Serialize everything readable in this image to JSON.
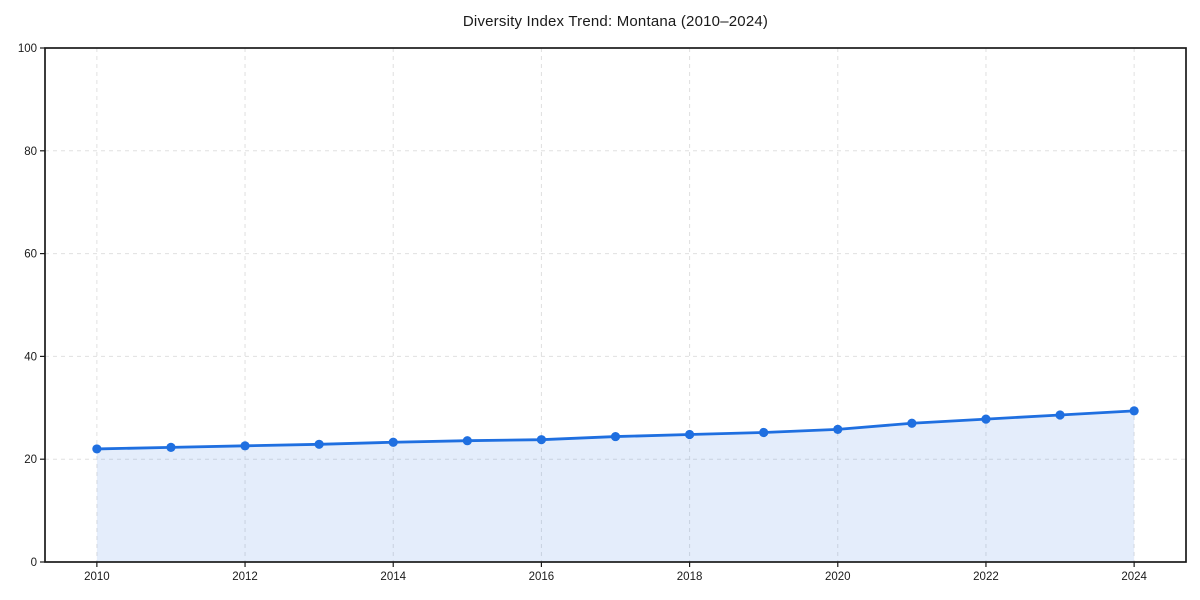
{
  "page": {
    "background_color": "#ffffff"
  },
  "chart_data": {
    "type": "line",
    "title": "Diversity Index Trend: Montana (2010–2024)",
    "x": [
      2010,
      2011,
      2012,
      2013,
      2014,
      2015,
      2016,
      2017,
      2018,
      2019,
      2020,
      2021,
      2022,
      2023,
      2024
    ],
    "series": [
      {
        "name": "Diversity Index",
        "values": [
          22.0,
          22.3,
          22.6,
          22.9,
          23.3,
          23.6,
          23.8,
          24.4,
          24.8,
          25.2,
          25.8,
          27.0,
          27.8,
          28.6,
          29.4
        ]
      }
    ],
    "xlabel": "",
    "ylabel": "",
    "xlim": [
      2009.3,
      2024.7
    ],
    "ylim": [
      0,
      100
    ],
    "x_ticks": [
      2010,
      2012,
      2014,
      2016,
      2018,
      2020,
      2022,
      2024
    ],
    "y_ticks": [
      0,
      20,
      40,
      60,
      80,
      100
    ],
    "grid": true,
    "grid_style": "dashed",
    "legend": false,
    "area_fill": true,
    "markers": true,
    "colors": {
      "line": "#1f6fe0",
      "marker": "#1f6fe0",
      "fill": "#1f6fe0",
      "fill_opacity": 0.12,
      "grid": "#e0e0e0",
      "axis": "#1a1a1a",
      "tick_label": "#1a1a1a",
      "title": "#1a1a1a"
    }
  }
}
